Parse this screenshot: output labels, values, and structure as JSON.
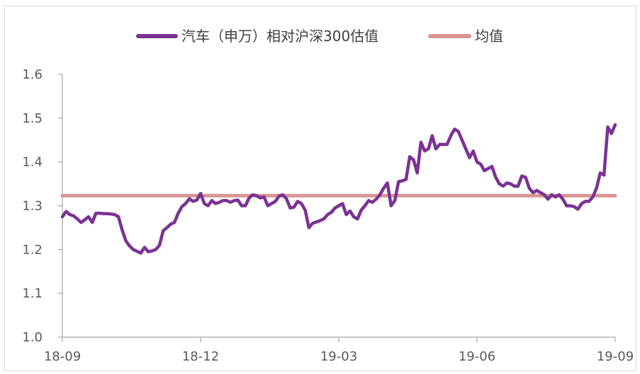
{
  "chart_data": {
    "type": "line",
    "title": "",
    "xlabel": "",
    "ylabel": "",
    "ylim": [
      1.0,
      1.6
    ],
    "yticks": [
      "1.0",
      "1.1",
      "1.2",
      "1.3",
      "1.4",
      "1.5",
      "1.6"
    ],
    "xticks": [
      "18-09",
      "18-12",
      "19-03",
      "19-06",
      "19-09"
    ],
    "legend_position": "top",
    "grid": false,
    "series": [
      {
        "name": "汽车（申万）相对沪深300估值",
        "color": "#7b3294",
        "values": [
          [
            0,
            1.275
          ],
          [
            1,
            1.287
          ],
          [
            2,
            1.28
          ],
          [
            3,
            1.277
          ],
          [
            4,
            1.27
          ],
          [
            5,
            1.262
          ],
          [
            6,
            1.268
          ],
          [
            7,
            1.275
          ],
          [
            8,
            1.262
          ],
          [
            9,
            1.283
          ],
          [
            10,
            1.283
          ],
          [
            11,
            1.282
          ],
          [
            12,
            1.282
          ],
          [
            13,
            1.281
          ],
          [
            14,
            1.28
          ],
          [
            15,
            1.275
          ],
          [
            16,
            1.245
          ],
          [
            17,
            1.22
          ],
          [
            18,
            1.208
          ],
          [
            19,
            1.2
          ],
          [
            20,
            1.196
          ],
          [
            21,
            1.192
          ],
          [
            22,
            1.205
          ],
          [
            23,
            1.195
          ],
          [
            24,
            1.197
          ],
          [
            25,
            1.2
          ],
          [
            26,
            1.21
          ],
          [
            27,
            1.243
          ],
          [
            28,
            1.25
          ],
          [
            29,
            1.258
          ],
          [
            30,
            1.262
          ],
          [
            31,
            1.283
          ],
          [
            32,
            1.298
          ],
          [
            33,
            1.305
          ],
          [
            34,
            1.316
          ],
          [
            35,
            1.31
          ],
          [
            36,
            1.313
          ],
          [
            37,
            1.328
          ],
          [
            38,
            1.305
          ],
          [
            39,
            1.3
          ],
          [
            40,
            1.312
          ],
          [
            41,
            1.305
          ],
          [
            42,
            1.308
          ],
          [
            43,
            1.312
          ],
          [
            44,
            1.312
          ],
          [
            45,
            1.308
          ],
          [
            46,
            1.312
          ],
          [
            47,
            1.313
          ],
          [
            48,
            1.3
          ],
          [
            49,
            1.3
          ],
          [
            50,
            1.318
          ],
          [
            51,
            1.325
          ],
          [
            52,
            1.323
          ],
          [
            53,
            1.318
          ],
          [
            54,
            1.32
          ],
          [
            55,
            1.3
          ],
          [
            56,
            1.305
          ],
          [
            57,
            1.31
          ],
          [
            58,
            1.322
          ],
          [
            59,
            1.325
          ],
          [
            60,
            1.316
          ],
          [
            61,
            1.295
          ],
          [
            62,
            1.297
          ],
          [
            63,
            1.31
          ],
          [
            64,
            1.305
          ],
          [
            65,
            1.29
          ],
          [
            66,
            1.25
          ],
          [
            67,
            1.26
          ],
          [
            68,
            1.263
          ],
          [
            69,
            1.266
          ],
          [
            70,
            1.27
          ],
          [
            71,
            1.28
          ],
          [
            72,
            1.285
          ],
          [
            73,
            1.295
          ],
          [
            74,
            1.3
          ],
          [
            75,
            1.305
          ],
          [
            76,
            1.28
          ],
          [
            77,
            1.288
          ],
          [
            78,
            1.275
          ],
          [
            79,
            1.27
          ],
          [
            80,
            1.29
          ],
          [
            81,
            1.3
          ],
          [
            82,
            1.312
          ],
          [
            83,
            1.308
          ],
          [
            84,
            1.315
          ],
          [
            85,
            1.325
          ],
          [
            86,
            1.34
          ],
          [
            87,
            1.352
          ],
          [
            88,
            1.3
          ],
          [
            89,
            1.312
          ],
          [
            90,
            1.355
          ],
          [
            91,
            1.357
          ],
          [
            92,
            1.36
          ],
          [
            93,
            1.412
          ],
          [
            94,
            1.405
          ],
          [
            95,
            1.375
          ],
          [
            96,
            1.445
          ],
          [
            97,
            1.425
          ],
          [
            98,
            1.43
          ],
          [
            99,
            1.46
          ],
          [
            100,
            1.43
          ],
          [
            101,
            1.44
          ],
          [
            102,
            1.44
          ],
          [
            103,
            1.44
          ],
          [
            104,
            1.46
          ],
          [
            105,
            1.475
          ],
          [
            106,
            1.47
          ],
          [
            107,
            1.45
          ],
          [
            108,
            1.43
          ],
          [
            109,
            1.41
          ],
          [
            110,
            1.425
          ],
          [
            111,
            1.4
          ],
          [
            112,
            1.395
          ],
          [
            113,
            1.38
          ],
          [
            114,
            1.385
          ],
          [
            115,
            1.39
          ],
          [
            116,
            1.365
          ],
          [
            117,
            1.35
          ],
          [
            118,
            1.345
          ],
          [
            119,
            1.352
          ],
          [
            120,
            1.35
          ],
          [
            121,
            1.345
          ],
          [
            122,
            1.345
          ],
          [
            123,
            1.368
          ],
          [
            124,
            1.365
          ],
          [
            125,
            1.34
          ],
          [
            126,
            1.33
          ],
          [
            127,
            1.335
          ],
          [
            128,
            1.33
          ],
          [
            129,
            1.325
          ],
          [
            130,
            1.315
          ],
          [
            131,
            1.325
          ],
          [
            132,
            1.32
          ],
          [
            133,
            1.325
          ],
          [
            134,
            1.315
          ],
          [
            135,
            1.3
          ],
          [
            136,
            1.3
          ],
          [
            137,
            1.298
          ],
          [
            138,
            1.292
          ],
          [
            139,
            1.305
          ],
          [
            140,
            1.31
          ],
          [
            141,
            1.31
          ],
          [
            142,
            1.32
          ],
          [
            143,
            1.34
          ],
          [
            144,
            1.375
          ],
          [
            145,
            1.37
          ],
          [
            146,
            1.48
          ],
          [
            147,
            1.465
          ],
          [
            148,
            1.485
          ]
        ]
      },
      {
        "name": "均值",
        "color": "#d99594",
        "values": [
          [
            0,
            1.323
          ],
          [
            148,
            1.323
          ]
        ]
      }
    ]
  }
}
